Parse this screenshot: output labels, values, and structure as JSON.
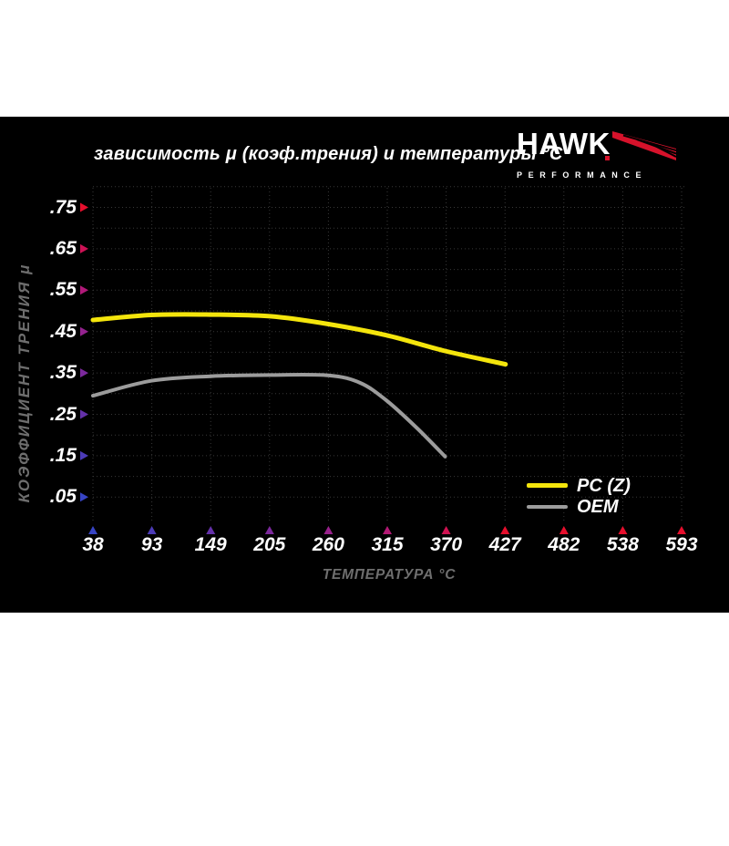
{
  "chart": {
    "title": "зависимость μ (коэф.трения) и температуры °C"
  },
  "logo": {
    "brand": "HAWK",
    "subtitle": "PERFORMANCE",
    "flag_color": "#d6122b"
  },
  "chart_data": {
    "type": "line",
    "title": "зависимость μ (коэф.трения) и температуры °C",
    "xlabel": "ТЕМПЕРАТУРА °C",
    "ylabel": "КОЭФФИЦИЕНТ ТРЕНИЯ μ",
    "x_ticks": [
      "38",
      "93",
      "149",
      "205",
      "260",
      "315",
      "370",
      "427",
      "482",
      "538",
      "593"
    ],
    "y_ticks": [
      ".05",
      ".15",
      ".25",
      ".35",
      ".45",
      ".55",
      ".65",
      ".75"
    ],
    "xlim": [
      38,
      593
    ],
    "ylim": [
      0,
      0.8
    ],
    "grid": "dotted, horizontal every 0.05, vertical at each temperature tick",
    "background": "#000000",
    "legend_position": "lower-right",
    "series": [
      {
        "name": "PC (Z)",
        "color": "#f4e50c",
        "x": [
          38,
          93,
          149,
          205,
          260,
          315,
          370,
          427
        ],
        "y": [
          0.478,
          0.49,
          0.491,
          0.487,
          0.468,
          0.441,
          0.403,
          0.371
        ]
      },
      {
        "name": "OEM",
        "color": "#9c9c9c",
        "x": [
          38,
          93,
          149,
          205,
          260,
          290,
          315,
          343,
          370
        ],
        "y": [
          0.295,
          0.331,
          0.342,
          0.345,
          0.344,
          0.326,
          0.283,
          0.218,
          0.148
        ]
      }
    ],
    "y_axis_gradient": [
      "#ee0f23",
      "#c31465",
      "#8a2196",
      "#4939b9",
      "#2b42c6"
    ],
    "x_axis_gradient": [
      "#2b42c6",
      "#4939b9",
      "#8a2196",
      "#c31465",
      "#ee0f23"
    ],
    "y_arrow_colors": [
      "#3744c4",
      "#4c3bb7",
      "#6431a9",
      "#7c299c",
      "#94228f",
      "#b11979",
      "#cd1255",
      "#e60f2d"
    ],
    "x_arrow_colors": [
      "#3744c4",
      "#4c3bb7",
      "#6431a9",
      "#7c299c",
      "#98218b",
      "#b31975",
      "#d01251",
      "#e60f2d",
      "#e60f2d",
      "#e60f2d",
      "#e60f2d"
    ],
    "grid_color": "#383838"
  }
}
